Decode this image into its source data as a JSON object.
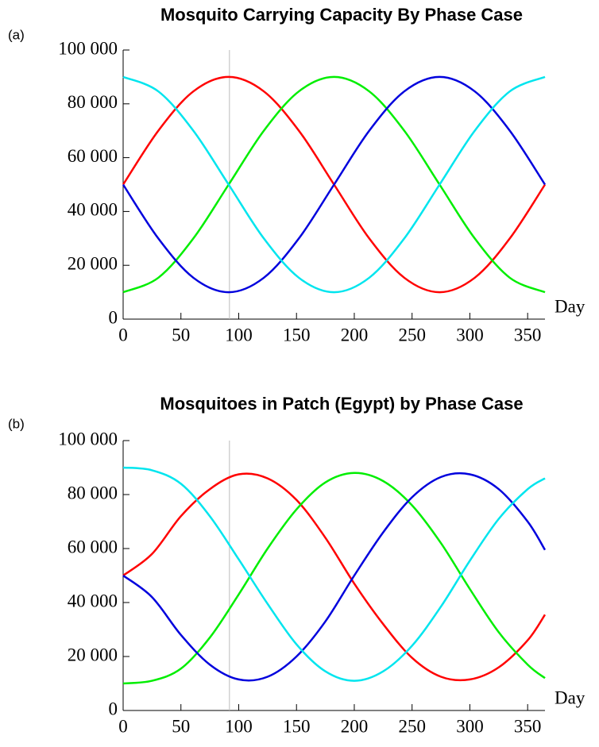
{
  "chart_data": [
    {
      "type": "line",
      "label": "(a)",
      "title": "Mosquito Carrying Capacity By Phase Case",
      "x_label": "Day",
      "x": [
        0,
        30.4,
        60.8,
        91.3,
        121.7,
        152.1,
        182.5,
        212.9,
        243.3,
        273.8,
        304.2,
        334.6,
        365
      ],
      "series": [
        {
          "color": "#ff0000",
          "values": [
            50000,
            70000,
            84641,
            90000,
            84641,
            70000,
            50000,
            30000,
            15359,
            10000,
            15359,
            30000,
            50000
          ]
        },
        {
          "color": "#00ee00",
          "values": [
            10000,
            15359,
            30000,
            50000,
            70000,
            84641,
            90000,
            84641,
            70000,
            50000,
            30000,
            15359,
            10000
          ]
        },
        {
          "color": "#0000dd",
          "values": [
            50000,
            30000,
            15359,
            10000,
            15359,
            30000,
            50000,
            70000,
            84641,
            90000,
            84641,
            70000,
            50000
          ]
        },
        {
          "color": "#00e5ee",
          "values": [
            90000,
            84641,
            70000,
            50000,
            30000,
            15359,
            10000,
            15359,
            30000,
            50000,
            70000,
            84641,
            90000
          ]
        }
      ],
      "vline": 92,
      "xlim": [
        0,
        365
      ],
      "xticks": [
        0,
        50,
        100,
        150,
        200,
        250,
        300,
        350
      ],
      "ylim": [
        0,
        100000
      ],
      "yticks": [
        0,
        {
          "value": 20000,
          "label": "20 000"
        },
        {
          "value": 40000,
          "label": "40 000"
        },
        {
          "value": 60000,
          "label": "60 000"
        },
        {
          "value": 80000,
          "label": "80 000"
        },
        {
          "value": 100000,
          "label": "100 000"
        }
      ]
    },
    {
      "type": "line",
      "label": "(b)",
      "title": "Mosquitoes in Patch (Egypt) by Phase Case",
      "x_label": "Day",
      "x": [
        0,
        25,
        50,
        75,
        100,
        125,
        150,
        175,
        200,
        225,
        250,
        275,
        300,
        325,
        350,
        365
      ],
      "series": [
        {
          "color": "#ff0000",
          "values": [
            50000,
            58000,
            72000,
            82000,
            87500,
            86000,
            78000,
            64000,
            47000,
            32000,
            19500,
            12500,
            11500,
            16000,
            26000,
            35500
          ]
        },
        {
          "color": "#00ee00",
          "values": [
            10000,
            11000,
            15500,
            27000,
            43000,
            60000,
            74500,
            84500,
            88000,
            85000,
            76000,
            62000,
            45000,
            29000,
            17000,
            12000
          ]
        },
        {
          "color": "#0000dd",
          "values": [
            50000,
            42000,
            28000,
            17000,
            11500,
            12500,
            20000,
            33000,
            50000,
            66000,
            79000,
            86500,
            87500,
            82000,
            70000,
            59500
          ]
        },
        {
          "color": "#00e5ee",
          "values": [
            90000,
            89000,
            84000,
            72000,
            56000,
            39500,
            24500,
            14500,
            11000,
            14500,
            24000,
            38500,
            55500,
            71000,
            82000,
            86000
          ]
        }
      ],
      "vline": 92,
      "xlim": [
        0,
        365
      ],
      "xticks": [
        0,
        50,
        100,
        150,
        200,
        250,
        300,
        350
      ],
      "ylim": [
        0,
        100000
      ],
      "yticks": [
        0,
        {
          "value": 20000,
          "label": "20 000"
        },
        {
          "value": 40000,
          "label": "40 000"
        },
        {
          "value": 60000,
          "label": "60 000"
        },
        {
          "value": 80000,
          "label": "80 000"
        },
        {
          "value": 100000,
          "label": "100 000"
        }
      ]
    }
  ]
}
